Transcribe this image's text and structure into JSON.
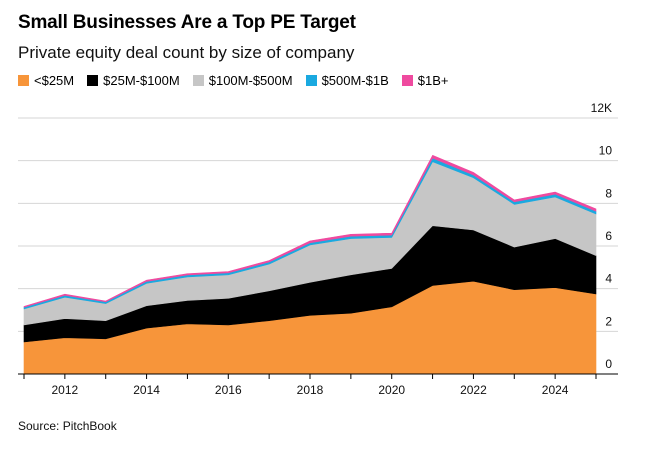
{
  "header": {
    "title": "Small Businesses Are a Top PE Target",
    "subtitle": "Private equity deal count by size of company"
  },
  "source": "Source: PitchBook",
  "chart_data": {
    "type": "area",
    "stacked": true,
    "title": "Small Businesses Are a Top PE Target",
    "subtitle": "Private equity deal count by size of company",
    "x": [
      2011,
      2012,
      2013,
      2014,
      2015,
      2016,
      2017,
      2018,
      2019,
      2020,
      2021,
      2022,
      2023,
      2024,
      2025
    ],
    "series": [
      {
        "name": "<$25M",
        "color": "#f7953a",
        "values": [
          1500,
          1700,
          1650,
          2150,
          2350,
          2300,
          2500,
          2750,
          2850,
          3150,
          4150,
          4350,
          3950,
          4050,
          3750
        ]
      },
      {
        "name": "$25M-$100M",
        "color": "#000000",
        "values": [
          800,
          900,
          850,
          1050,
          1100,
          1250,
          1400,
          1550,
          1800,
          1800,
          2800,
          2400,
          2000,
          2300,
          1800
        ]
      },
      {
        "name": "$100M-$500M",
        "color": "#c6c6c6",
        "values": [
          750,
          1000,
          800,
          1050,
          1100,
          1100,
          1250,
          1750,
          1700,
          1450,
          3000,
          2450,
          2000,
          1950,
          1950
        ]
      },
      {
        "name": "$500M-$1B",
        "color": "#1aa9e0",
        "values": [
          80,
          90,
          80,
          90,
          90,
          90,
          100,
          100,
          110,
          110,
          170,
          130,
          120,
          130,
          130
        ]
      },
      {
        "name": "$1B+",
        "color": "#ef4a9f",
        "values": [
          40,
          50,
          40,
          60,
          60,
          60,
          70,
          90,
          90,
          90,
          130,
          120,
          90,
          100,
          110
        ]
      }
    ],
    "ylim": [
      0,
      12000
    ],
    "y_ticks": [
      0,
      2,
      4,
      6,
      8,
      10
    ],
    "y_top_label": "12K",
    "x_tick_labels": [
      "2012",
      "2014",
      "2016",
      "2018",
      "2020",
      "2022",
      "2024"
    ],
    "grid": true,
    "legend_position": "top-left",
    "xlabel": "",
    "ylabel": ""
  }
}
